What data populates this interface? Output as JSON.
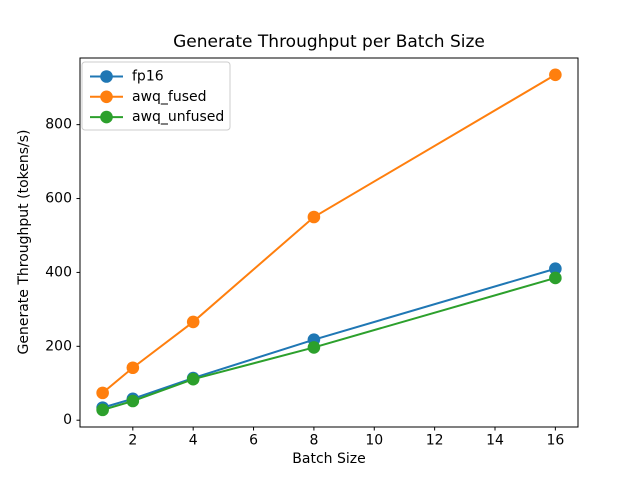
{
  "chart_data": {
    "type": "line",
    "title": "Generate Throughput per Batch Size",
    "xlabel": "Batch Size",
    "ylabel": "Generate Throughput (tokens/s)",
    "x": [
      1,
      2,
      4,
      8,
      16
    ],
    "series": [
      {
        "name": "fp16",
        "color": "#1f77b4",
        "values": [
          34,
          58,
          114,
          218,
          410
        ]
      },
      {
        "name": "awq_fused",
        "color": "#ff7f0e",
        "values": [
          74,
          142,
          266,
          550,
          935
        ]
      },
      {
        "name": "awq_unfused",
        "color": "#2ca02c",
        "values": [
          28,
          52,
          111,
          197,
          385
        ]
      }
    ],
    "xticks": [
      2,
      4,
      6,
      8,
      10,
      12,
      14,
      16
    ],
    "yticks": [
      0,
      200,
      400,
      600,
      800
    ],
    "xlim": [
      0.25,
      16.75
    ],
    "ylim": [
      -18.4,
      980.4
    ],
    "grid": false,
    "marker": "o",
    "legend_position": "upper left",
    "axis_color": "#000000",
    "background_color": "#ffffff",
    "legend_border_color": "#cccccc"
  }
}
